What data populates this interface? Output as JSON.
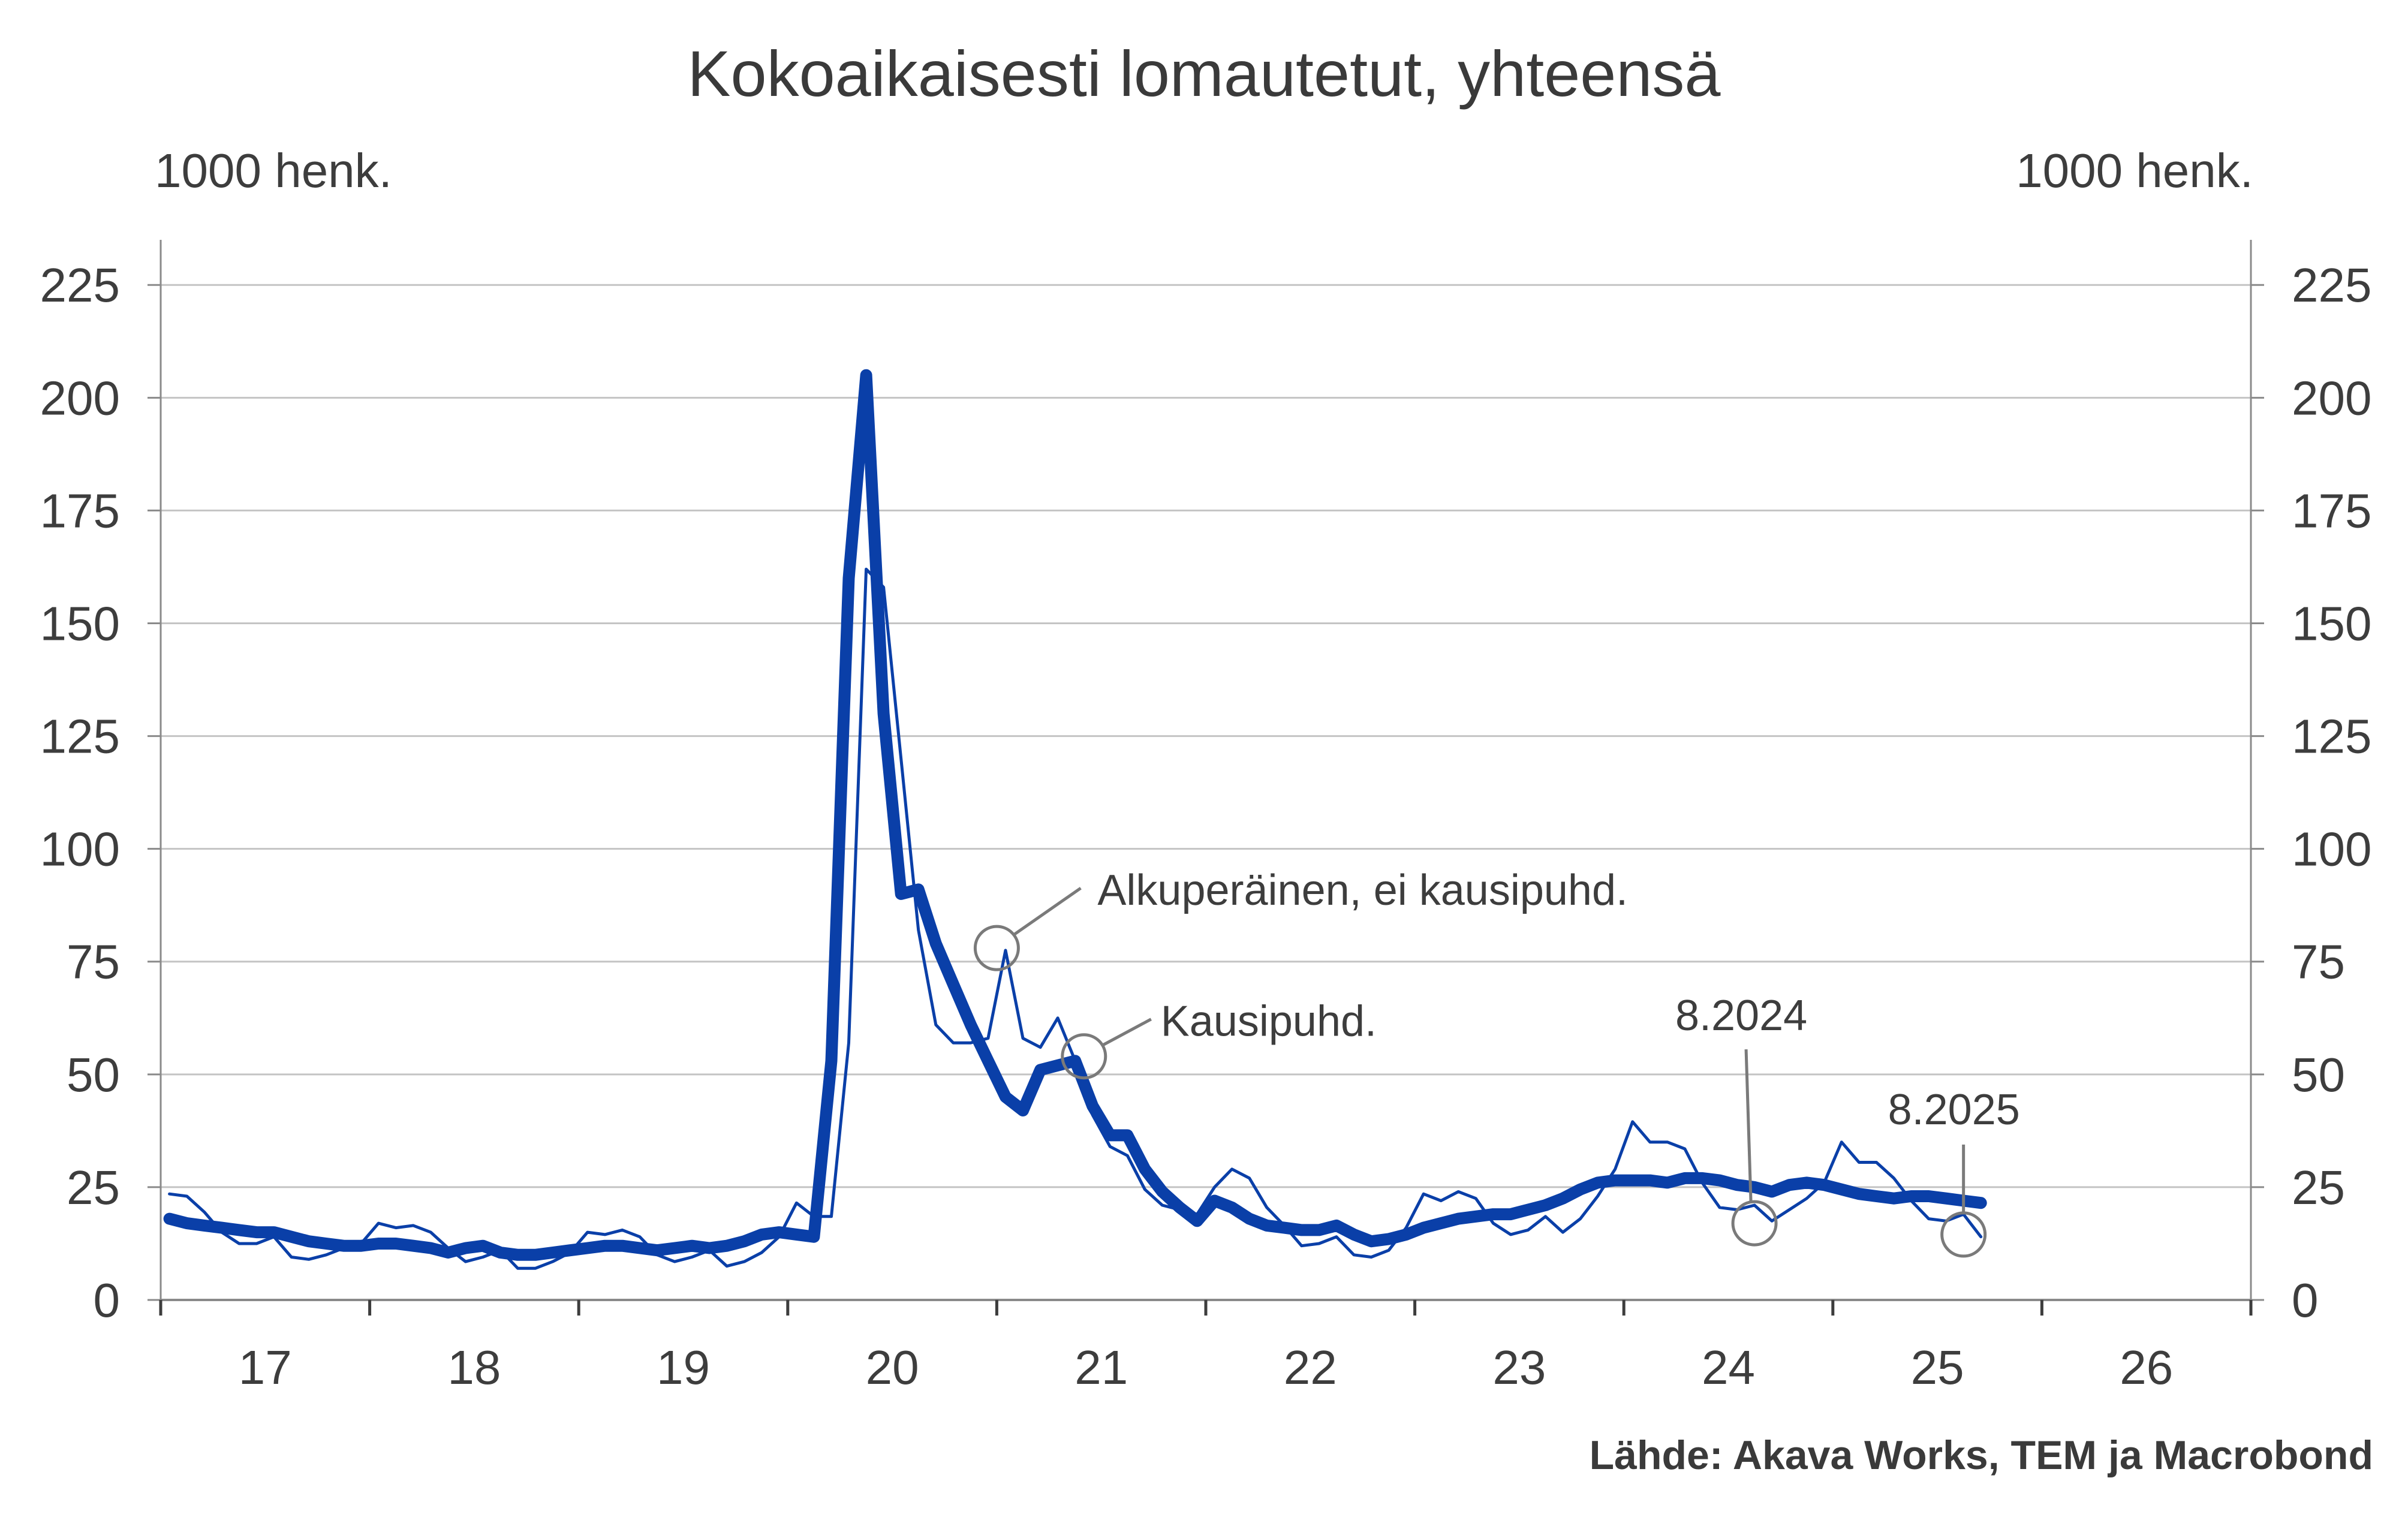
{
  "chart_data": {
    "type": "line",
    "title": "Kokoaikaisesti lomautetut, yhteensä",
    "y_unit_left": "1000 henk.",
    "y_unit_right": "1000 henk.",
    "source": "Lähde: Akava Works, TEM ja Macrobond",
    "ylim": [
      0,
      235
    ],
    "y_ticks": [
      0,
      25,
      50,
      75,
      100,
      125,
      150,
      175,
      200,
      225
    ],
    "y_tick_labels": [
      "0",
      "25",
      "50",
      "75",
      "100",
      "125",
      "150",
      "175",
      "200",
      "225"
    ],
    "xlim": [
      2016.958,
      2026.958
    ],
    "x_ticks": [
      2016.958,
      2017.958,
      2018.958,
      2019.958,
      2020.958,
      2021.958,
      2022.958,
      2023.958,
      2024.958,
      2025.958,
      2026.958
    ],
    "x_tick_labels": [
      {
        "label": "17",
        "x": 2017.458
      },
      {
        "label": "18",
        "x": 2018.458
      },
      {
        "label": "19",
        "x": 2019.458
      },
      {
        "label": "20",
        "x": 2020.458
      },
      {
        "label": "21",
        "x": 2021.458
      },
      {
        "label": "22",
        "x": 2022.458
      },
      {
        "label": "23",
        "x": 2023.458
      },
      {
        "label": "24",
        "x": 2024.458
      },
      {
        "label": "25",
        "x": 2025.458
      },
      {
        "label": "26",
        "x": 2026.458
      }
    ],
    "grid": true,
    "line_color": "#0a3fa8",
    "series": [
      {
        "name": "Alkuperäinen, ei kausipuhd.",
        "style": "thin",
        "x_start": 2017.0,
        "x_step": 0.08333,
        "values": [
          23.5,
          23,
          19.5,
          15,
          12.5,
          12.5,
          14,
          9.5,
          9,
          10,
          11.5,
          12.5,
          17,
          16,
          16.5,
          15,
          11.5,
          8.5,
          9.5,
          11,
          7,
          7,
          8.5,
          10.5,
          15,
          14.5,
          15.5,
          14,
          10,
          8.5,
          9.5,
          11,
          7.5,
          8.5,
          10.5,
          14,
          21.5,
          18.5,
          18.5,
          57,
          162,
          158,
          120,
          82,
          61,
          57,
          57,
          58,
          77.5,
          58,
          56,
          62.5,
          53,
          41,
          34,
          32,
          24.5,
          21,
          20,
          19,
          25,
          29,
          27,
          20.5,
          16.5,
          12,
          12.5,
          14,
          10,
          9.5,
          11,
          16,
          23.5,
          22,
          24,
          22.5,
          17,
          14.5,
          15.5,
          18.5,
          15,
          18,
          23,
          29,
          39.5,
          35,
          35,
          33.5,
          26,
          20.5,
          20,
          21,
          17.5,
          20,
          22.5,
          26,
          35,
          30.5,
          30.5,
          27,
          22,
          18,
          17.5,
          19,
          14
        ]
      },
      {
        "name": "Kausipuhd.",
        "style": "thick",
        "x_start": 2017.0,
        "x_step": 0.08333,
        "values": [
          18,
          17,
          16.5,
          16,
          15.5,
          15,
          15,
          14,
          13,
          12.5,
          12,
          12,
          12.5,
          12.5,
          12,
          11.5,
          10.5,
          11.5,
          12,
          10.5,
          10,
          10,
          10.5,
          11,
          11.5,
          12,
          12,
          11.5,
          11,
          11.5,
          12,
          11.5,
          12,
          13,
          14.5,
          15,
          14.5,
          14,
          53,
          160,
          205,
          130,
          90,
          91,
          79,
          70,
          61,
          53,
          45,
          42,
          51,
          52,
          53,
          43,
          36.5,
          36.5,
          29,
          24,
          20.5,
          17.5,
          22,
          20.5,
          18,
          16.5,
          16,
          15.5,
          15.5,
          16.5,
          14.5,
          13,
          13.5,
          14.5,
          16,
          17,
          18,
          18.5,
          19,
          19,
          20,
          21,
          22.5,
          24.5,
          26,
          26.5,
          26.5,
          26.5,
          26,
          27,
          27,
          26.5,
          25.5,
          25,
          24,
          25.5,
          26,
          25.5,
          24.5,
          23.5,
          23,
          22.5,
          23,
          23,
          22.5,
          22,
          21.5
        ]
      }
    ],
    "annotations": [
      {
        "text": "Alkuperäinen, ei kausipuhd.",
        "x": 2020.958,
        "y": 78
      },
      {
        "text": "Kausipuhd.",
        "x": 2021.375,
        "y": 54
      },
      {
        "text": "8.2024",
        "x": 2024.583,
        "y": 17
      },
      {
        "text": "8.2025",
        "x": 2025.583,
        "y": 14.5
      }
    ]
  }
}
